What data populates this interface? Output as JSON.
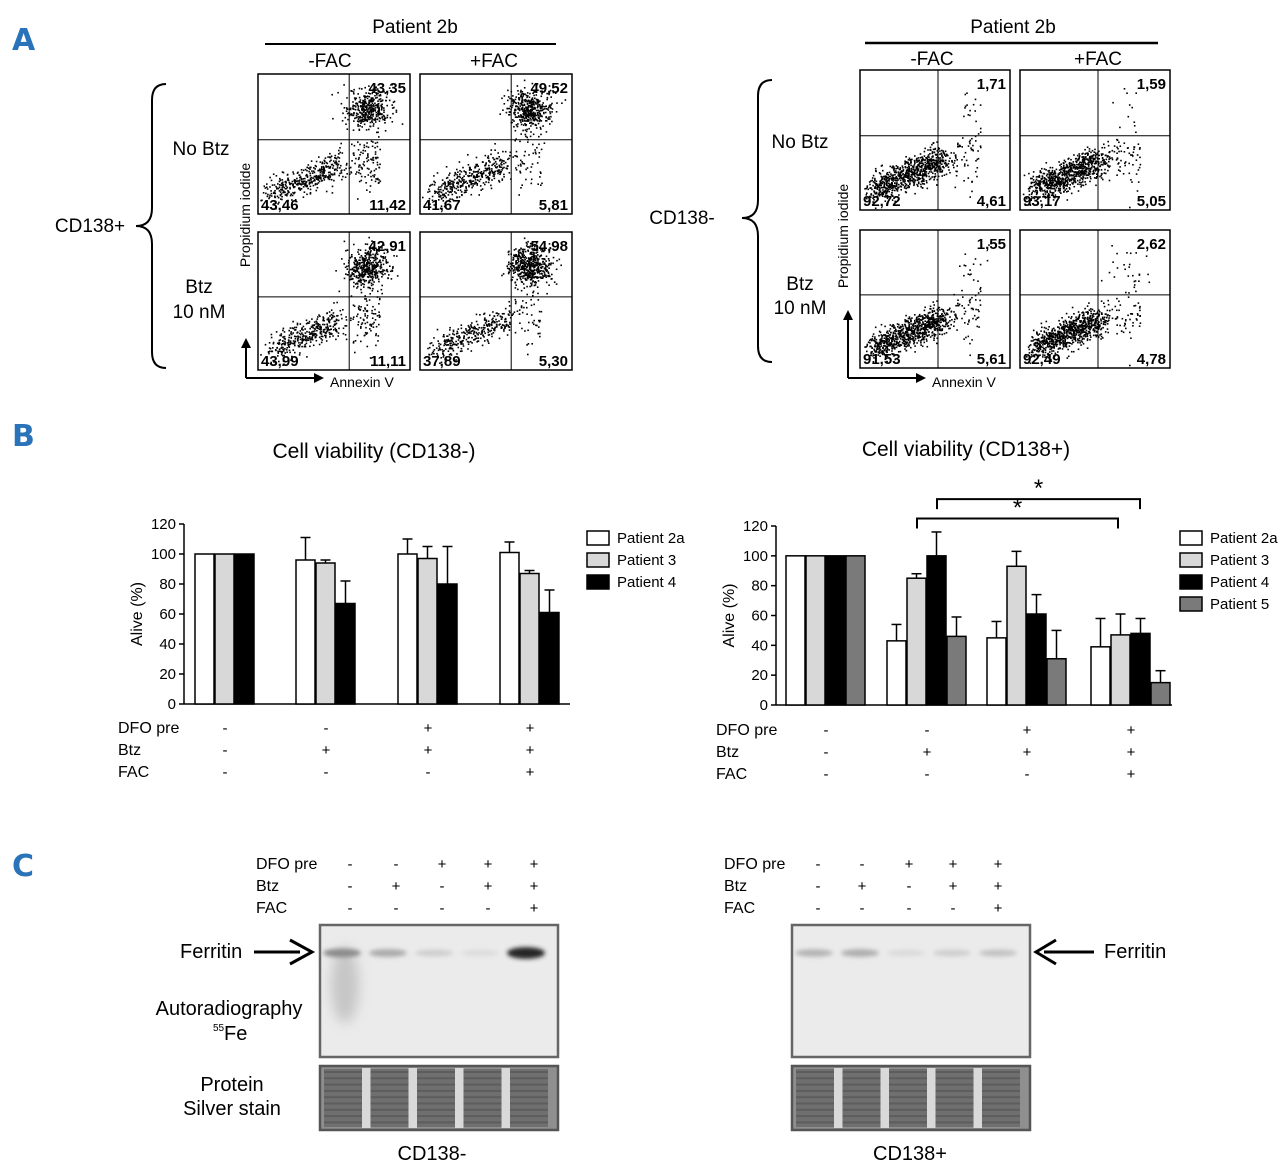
{
  "panel_labels": [
    "A",
    "B",
    "C"
  ],
  "colors": {
    "panel_label": "#2a73b8",
    "white_bar": "#ffffff",
    "light_grey_bar": "#d8d8d8",
    "black_bar": "#000000",
    "dark_grey_bar": "#7a7a7a"
  },
  "panel_a": {
    "left": {
      "patient": "Patient 2b",
      "group_label": "CD138+",
      "col_labels": [
        "-FAC",
        "+FAC"
      ],
      "row_labels": [
        [
          "No Btz"
        ],
        [
          "Btz",
          "10 nM"
        ]
      ],
      "y_axis_label": "Propidium iodide",
      "x_axis_label": "Annexin V",
      "quadrants": [
        {
          "top_right": "43,35",
          "bottom_left": "43,46",
          "bottom_right": "11,42"
        },
        {
          "top_right": "49,52",
          "bottom_left": "41,67",
          "bottom_right": "5,81"
        },
        {
          "top_right": "42,91",
          "bottom_left": "43,99",
          "bottom_right": "11,11"
        },
        {
          "top_right": "54,98",
          "bottom_left": "37,89",
          "bottom_right": "5,30"
        }
      ]
    },
    "right": {
      "patient": "Patient 2b",
      "group_label": "CD138-",
      "col_labels": [
        "-FAC",
        "+FAC"
      ],
      "row_labels": [
        [
          "No Btz"
        ],
        [
          "Btz",
          "10 nM"
        ]
      ],
      "y_axis_label": "Propidium iodide",
      "x_axis_label": "Annexin V",
      "quadrants": [
        {
          "top_right": "1,71",
          "bottom_left": "92,72",
          "bottom_right": "4,61"
        },
        {
          "top_right": "1,59",
          "bottom_left": "93,17",
          "bottom_right": "5,05"
        },
        {
          "top_right": "1,55",
          "bottom_left": "91,53",
          "bottom_right": "5,61"
        },
        {
          "top_right": "2,62",
          "bottom_left": "92,49",
          "bottom_right": "4,78"
        }
      ]
    }
  },
  "chart_data": [
    {
      "type": "bar",
      "title": "Cell viability (CD138-)",
      "ylabel": "Alive (%)",
      "ylim": [
        0,
        120
      ],
      "yticks": [
        "0",
        "20",
        "40",
        "60",
        "80",
        "100",
        "120"
      ],
      "legend_position": "right",
      "condition_rows": [
        {
          "label": "DFO pre",
          "values": [
            "-",
            "-",
            "+",
            "+"
          ]
        },
        {
          "label": "Btz",
          "values": [
            "-",
            "+",
            "+",
            "+"
          ]
        },
        {
          "label": "FAC",
          "values": [
            "-",
            "-",
            "-",
            "+"
          ]
        }
      ],
      "series": [
        {
          "name": "Patient 2a",
          "color": "#ffffff",
          "values": [
            100,
            96,
            100,
            101
          ],
          "errors": [
            0,
            15,
            10,
            7
          ]
        },
        {
          "name": "Patient 3",
          "color": "#d8d8d8",
          "values": [
            100,
            94,
            97,
            87
          ],
          "errors": [
            0,
            2,
            8,
            2
          ]
        },
        {
          "name": "Patient 4",
          "color": "#000000",
          "values": [
            100,
            67,
            80,
            61
          ],
          "errors": [
            0,
            15,
            25,
            15
          ]
        }
      ]
    },
    {
      "type": "bar",
      "title": "Cell viability (CD138+)",
      "ylabel": "Alive (%)",
      "ylim": [
        0,
        120
      ],
      "yticks": [
        "0",
        "20",
        "40",
        "60",
        "80",
        "100",
        "120"
      ],
      "legend_position": "right",
      "significance_marker": "*",
      "condition_rows": [
        {
          "label": "DFO pre",
          "values": [
            "-",
            "-",
            "+",
            "+"
          ]
        },
        {
          "label": "Btz",
          "values": [
            "-",
            "+",
            "+",
            "+"
          ]
        },
        {
          "label": "FAC",
          "values": [
            "-",
            "-",
            "-",
            "+"
          ]
        }
      ],
      "series": [
        {
          "name": "Patient 2a",
          "color": "#ffffff",
          "values": [
            100,
            43,
            45,
            39
          ],
          "errors": [
            0,
            11,
            11,
            19
          ]
        },
        {
          "name": "Patient 3",
          "color": "#d8d8d8",
          "values": [
            100,
            85,
            93,
            47
          ],
          "errors": [
            0,
            3,
            10,
            14
          ]
        },
        {
          "name": "Patient 4",
          "color": "#000000",
          "values": [
            100,
            100,
            61,
            48
          ],
          "errors": [
            0,
            16,
            13,
            10
          ]
        },
        {
          "name": "Patient 5",
          "color": "#7a7a7a",
          "values": [
            100,
            46,
            31,
            15
          ],
          "errors": [
            0,
            13,
            19,
            8
          ]
        }
      ]
    }
  ],
  "panel_c": {
    "condition_rows": [
      {
        "label": "DFO pre",
        "values": [
          "-",
          "-",
          "+",
          "+",
          "+"
        ]
      },
      {
        "label": "Btz",
        "values": [
          "-",
          "+",
          "-",
          "+",
          "+"
        ]
      },
      {
        "label": "FAC",
        "values": [
          "-",
          "-",
          "-",
          "-",
          "+"
        ]
      }
    ],
    "ferritin_label": "Ferritin",
    "autoradiography_label": "Autoradiography",
    "fe_superscript": "55",
    "fe_label": "Fe",
    "protein_label": "Protein",
    "silver_label": "Silver stain",
    "left_caption": "CD138-",
    "right_caption": "CD138+",
    "left_band_intensity": [
      0.45,
      0.3,
      0.12,
      0.05,
      0.95
    ],
    "right_band_intensity": [
      0.25,
      0.28,
      0.06,
      0.12,
      0.18
    ]
  }
}
